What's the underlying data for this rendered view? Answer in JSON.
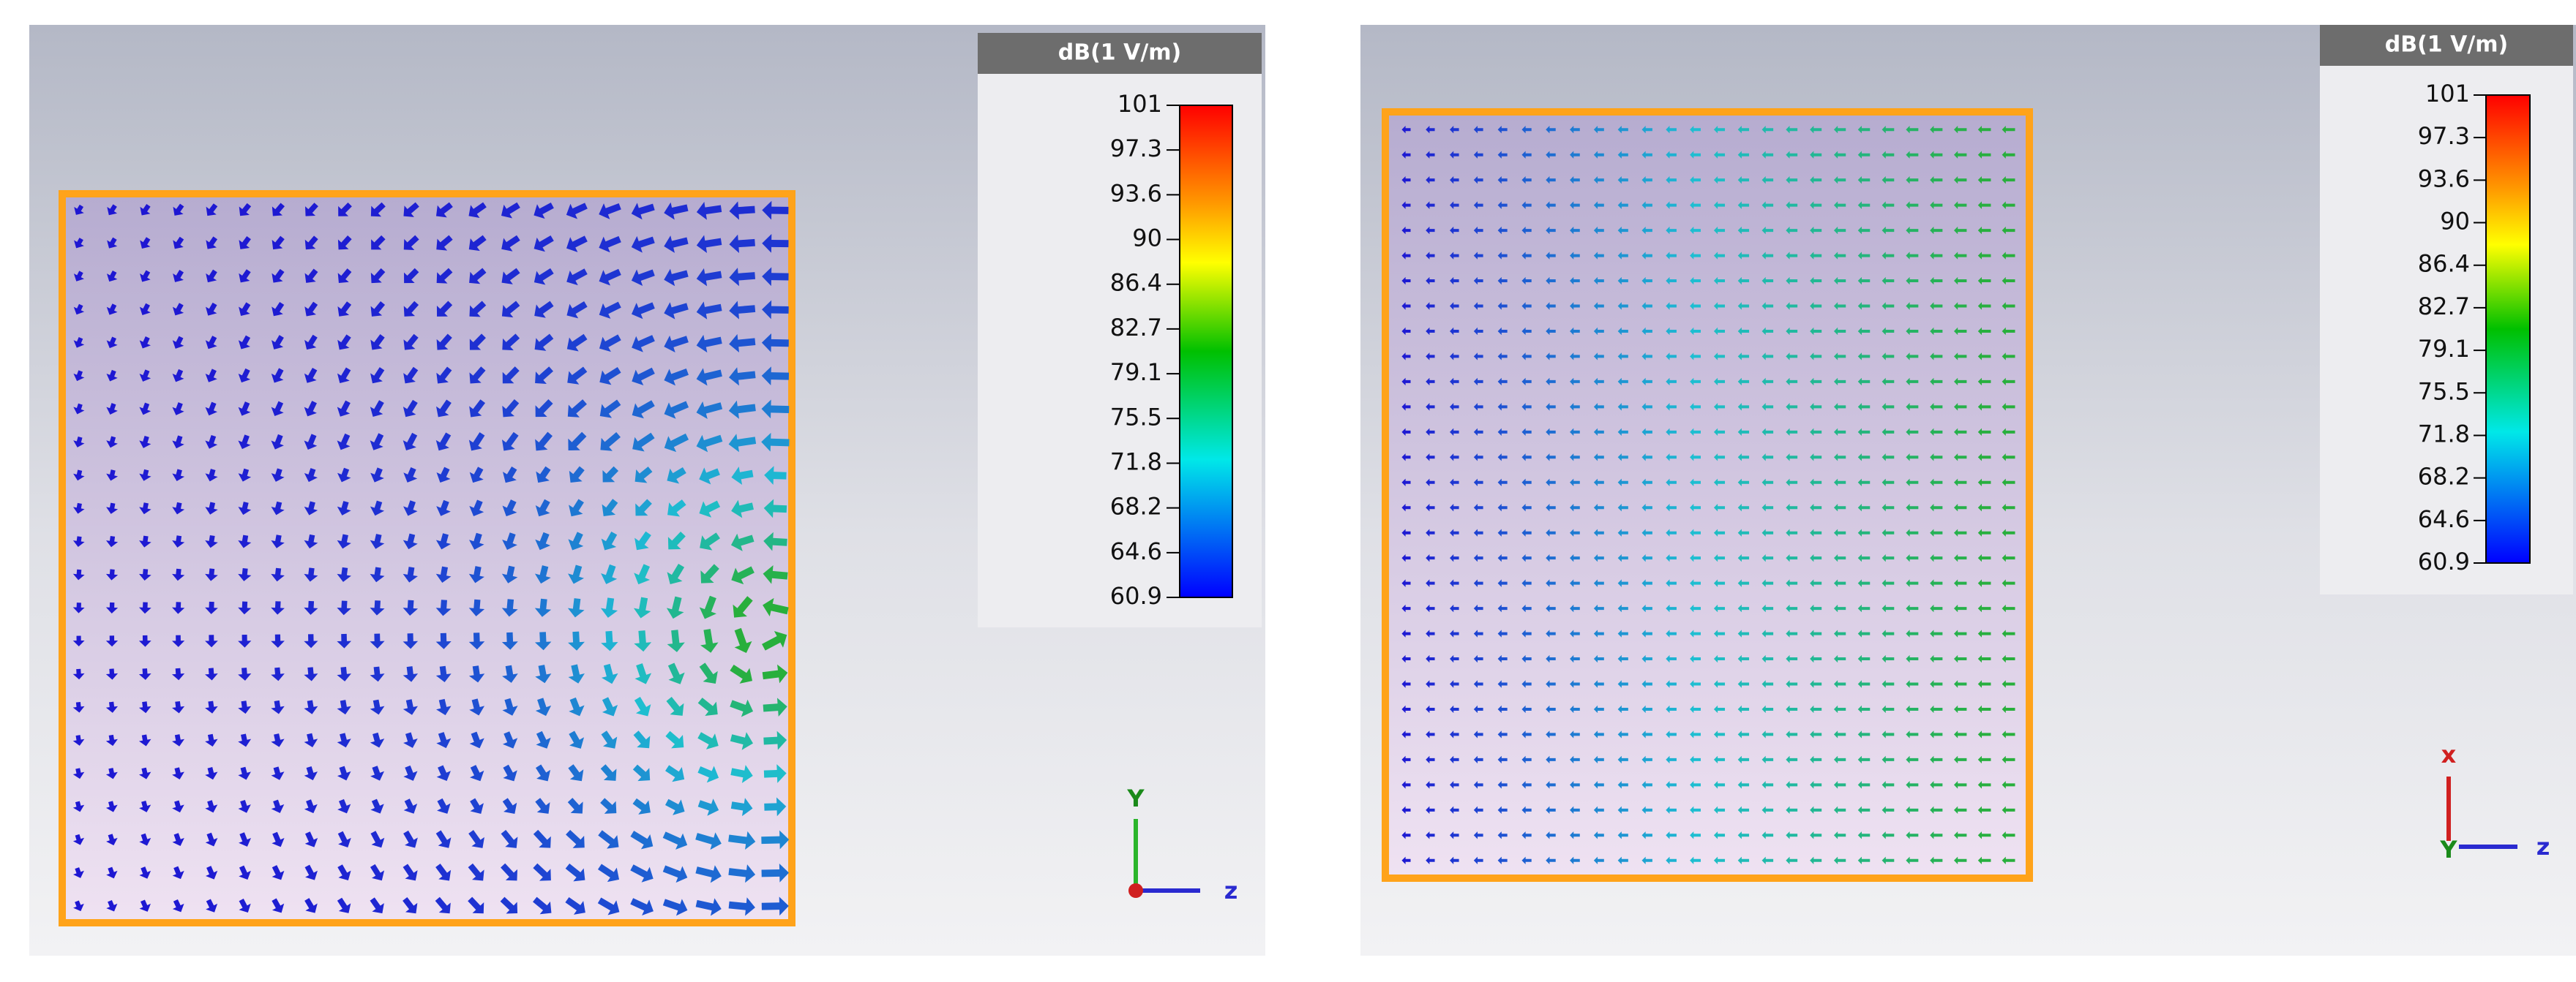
{
  "panels": [
    {
      "legend": {
        "title": "dB(1 V/m)",
        "ticks": [
          101,
          97.3,
          93.6,
          90,
          86.4,
          82.7,
          79.1,
          75.5,
          71.8,
          68.2,
          64.6,
          60.9
        ]
      },
      "axes": {
        "up": "Y",
        "right": "z"
      }
    },
    {
      "legend": {
        "title": "dB(1 V/m)",
        "ticks": [
          101,
          97.3,
          93.6,
          90,
          86.4,
          82.7,
          79.1,
          75.5,
          71.8,
          68.2,
          64.6,
          60.9
        ]
      },
      "axes": {
        "up": "x",
        "origin": "Y",
        "right": "z"
      }
    }
  ]
}
